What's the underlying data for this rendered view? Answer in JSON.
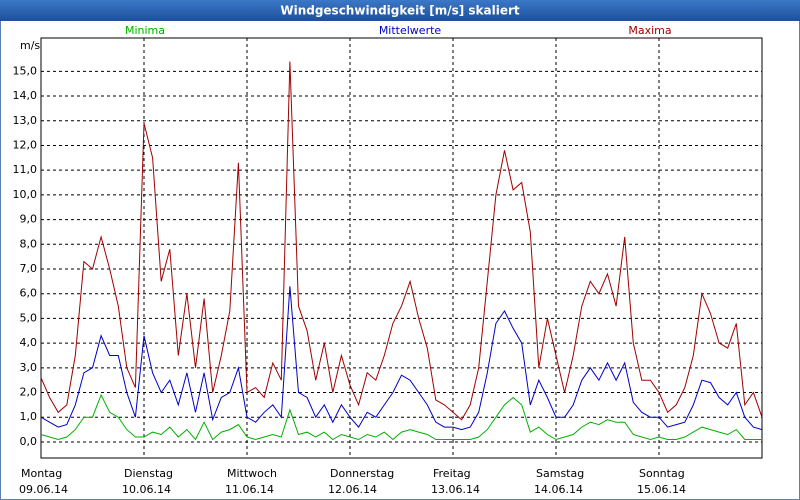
{
  "chart_data": {
    "type": "line",
    "title": "Windgeschwindigkeit [m/s] skaliert",
    "y_label": "m/s",
    "x": [
      0,
      2,
      4,
      6,
      8,
      10,
      12,
      14,
      16,
      18,
      20,
      22,
      24,
      26,
      28,
      30,
      32,
      34,
      36,
      38,
      40,
      42,
      44,
      46,
      48,
      50,
      52,
      54,
      56,
      58,
      60,
      62,
      64,
      66,
      68,
      70,
      72,
      74,
      76,
      78,
      80,
      82,
      84,
      86,
      88,
      90,
      92,
      94,
      96,
      98,
      100,
      102,
      104,
      106,
      108,
      110,
      112,
      114,
      116,
      118,
      120,
      122,
      124,
      126,
      128,
      130,
      132,
      134,
      136,
      138,
      140,
      142,
      144,
      146,
      148,
      150,
      152,
      154,
      156,
      158,
      160,
      162,
      164,
      166,
      168
    ],
    "series": [
      {
        "name": "Minima",
        "color": "#00b000",
        "values": [
          0.3,
          0.2,
          0.1,
          0.2,
          0.5,
          1.0,
          1.0,
          1.9,
          1.2,
          1.0,
          0.5,
          0.2,
          0.2,
          0.4,
          0.3,
          0.6,
          0.2,
          0.5,
          0.1,
          0.8,
          0.1,
          0.4,
          0.5,
          0.7,
          0.2,
          0.1,
          0.2,
          0.3,
          0.2,
          1.3,
          0.3,
          0.4,
          0.2,
          0.4,
          0.1,
          0.3,
          0.2,
          0.1,
          0.3,
          0.2,
          0.4,
          0.1,
          0.4,
          0.5,
          0.4,
          0.3,
          0.1,
          0.1,
          0.1,
          0.1,
          0.1,
          0.2,
          0.5,
          1.0,
          1.5,
          1.8,
          1.5,
          0.4,
          0.6,
          0.3,
          0.1,
          0.2,
          0.3,
          0.6,
          0.8,
          0.7,
          0.9,
          0.8,
          0.8,
          0.3,
          0.2,
          0.1,
          0.2,
          0.1,
          0.1,
          0.2,
          0.4,
          0.6,
          0.5,
          0.4,
          0.3,
          0.5,
          0.1,
          0.1,
          0.1
        ]
      },
      {
        "name": "Mittelwerte",
        "color": "#0000c8",
        "values": [
          1.0,
          0.8,
          0.6,
          0.7,
          1.5,
          2.8,
          3.0,
          4.3,
          3.5,
          3.5,
          2.0,
          1.0,
          4.3,
          2.8,
          2.0,
          2.5,
          1.5,
          2.8,
          1.2,
          2.8,
          0.9,
          1.8,
          2.0,
          3.0,
          1.0,
          0.8,
          1.2,
          1.5,
          1.0,
          6.3,
          2.0,
          1.8,
          1.0,
          1.5,
          0.8,
          1.5,
          1.0,
          0.6,
          1.2,
          1.0,
          1.5,
          2.0,
          2.7,
          2.5,
          2.0,
          1.5,
          0.8,
          0.6,
          0.6,
          0.5,
          0.6,
          1.2,
          2.8,
          4.8,
          5.3,
          4.6,
          4.0,
          1.5,
          2.5,
          1.8,
          1.0,
          1.0,
          1.5,
          2.5,
          3.0,
          2.5,
          3.2,
          2.5,
          3.2,
          1.6,
          1.2,
          1.0,
          1.0,
          0.6,
          0.7,
          0.8,
          1.5,
          2.5,
          2.4,
          1.8,
          1.5,
          2.0,
          1.0,
          0.6,
          0.5
        ]
      },
      {
        "name": "Maxima",
        "color": "#a00000",
        "values": [
          2.6,
          1.8,
          1.2,
          1.5,
          3.5,
          7.3,
          7.0,
          8.3,
          7.0,
          5.5,
          3.0,
          2.2,
          12.9,
          11.5,
          6.5,
          7.8,
          3.5,
          6.0,
          3.0,
          5.8,
          2.0,
          3.5,
          5.3,
          11.3,
          2.0,
          2.2,
          1.8,
          3.2,
          2.5,
          15.4,
          5.5,
          4.5,
          2.5,
          4.0,
          2.0,
          3.5,
          2.3,
          1.5,
          2.8,
          2.5,
          3.5,
          4.8,
          5.5,
          6.5,
          5.0,
          3.8,
          1.7,
          1.5,
          1.2,
          0.9,
          1.5,
          3.0,
          6.5,
          10.0,
          11.8,
          10.2,
          10.5,
          8.5,
          3.0,
          5.0,
          3.5,
          2.0,
          3.5,
          5.5,
          6.5,
          6.0,
          6.8,
          5.5,
          8.3,
          4.0,
          2.5,
          2.5,
          2.0,
          1.2,
          1.5,
          2.2,
          3.5,
          6.0,
          5.2,
          4.0,
          3.8,
          4.8,
          1.5,
          2.0,
          1.0
        ]
      }
    ],
    "xlim": [
      0,
      168
    ],
    "xticks": [
      {
        "value": 0,
        "label": "Montag",
        "date": "09.06.14"
      },
      {
        "value": 24,
        "label": "Dienstag",
        "date": "10.06.14"
      },
      {
        "value": 48,
        "label": "Mittwoch",
        "date": "11.06.14"
      },
      {
        "value": 72,
        "label": "Donnerstag",
        "date": "12.06.14"
      },
      {
        "value": 96,
        "label": "Freitag",
        "date": "13.06.14"
      },
      {
        "value": 120,
        "label": "Samstag",
        "date": "14.06.14"
      },
      {
        "value": 144,
        "label": "Sonntag",
        "date": "15.06.14"
      }
    ],
    "ylim": [
      -0.65,
      16.35
    ],
    "yticks": [
      {
        "value": 0,
        "label": "0,0"
      },
      {
        "value": 1,
        "label": "1,0"
      },
      {
        "value": 2,
        "label": "2,0"
      },
      {
        "value": 3,
        "label": "3,0"
      },
      {
        "value": 4,
        "label": "4,0"
      },
      {
        "value": 5,
        "label": "5,0"
      },
      {
        "value": 6,
        "label": "6,0"
      },
      {
        "value": 7,
        "label": "7,0"
      },
      {
        "value": 8,
        "label": "8,0"
      },
      {
        "value": 9,
        "label": "9,0"
      },
      {
        "value": 10,
        "label": "10,0"
      },
      {
        "value": 11,
        "label": "11,0"
      },
      {
        "value": 12,
        "label": "12,0"
      },
      {
        "value": 13,
        "label": "13,0"
      },
      {
        "value": 14,
        "label": "14,0"
      },
      {
        "value": 15,
        "label": "15,0"
      }
    ],
    "grid": true
  }
}
